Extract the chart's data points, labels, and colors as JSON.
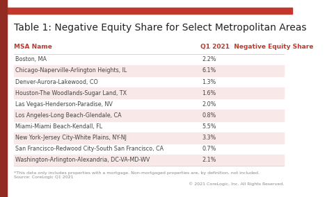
{
  "title": "Table 1: Negative Equity Share for Select Metropolitan Areas",
  "col1_header": "MSA Name",
  "col2_header": "Q1 2021  Negative Equity Share",
  "rows": [
    [
      "Boston, MA",
      "2.2%"
    ],
    [
      "Chicago-Naperville-Arlington Heights, IL",
      "6.1%"
    ],
    [
      "Denver-Aurora-Lakewood, CO",
      "1.3%"
    ],
    [
      "Houston-The Woodlands-Sugar Land, TX",
      "1.6%"
    ],
    [
      "Las Vegas-Henderson-Paradise, NV",
      "2.0%"
    ],
    [
      "Los Angeles-Long Beach-Glendale, CA",
      "0.8%"
    ],
    [
      "Miami-Miami Beach-Kendall, FL",
      "5.5%"
    ],
    [
      "New York-Jersey City-White Plains, NY-NJ",
      "3.3%"
    ],
    [
      "San Francisco-Redwood City-South San Francisco, CA",
      "0.7%"
    ],
    [
      "Washington-Arlington-Alexandria, DC-VA-MD-WV",
      "2.1%"
    ]
  ],
  "top_bar_color": "#c0392b",
  "left_bar_color": "#922b21",
  "header_text_color": "#c0392b",
  "title_color": "#222222",
  "row_alt_color": "#f9e8e8",
  "row_white_color": "#ffffff",
  "footer_text": "*This data only includes properties with a mortgage. Non-mortgaged properties are, by definition, not included.\nSource: CoreLogic Q1 2021",
  "footer_right_text": "© 2021 CoreLogic, Inc. All Rights Reserved.",
  "bg_color": "#ffffff",
  "title_fontsize": 10,
  "header_fontsize": 6.5,
  "row_fontsize": 5.8,
  "footer_fontsize": 4.5
}
